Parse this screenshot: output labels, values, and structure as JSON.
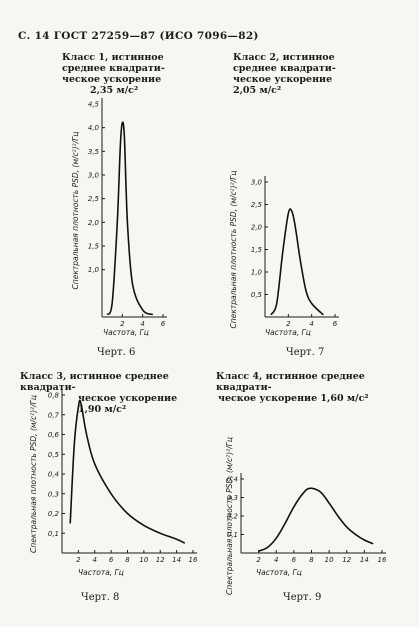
{
  "header": "С. 14 ГОСТ 27259—87 (ИСО 7096—82)",
  "ylabel": "Спектральная плотность PSD, (м/с²)²/Гц",
  "xlabel": "Частота, Гц",
  "blocks": [
    {
      "title_lines": [
        "Класс 1, истинное",
        "среднее квадрати-",
        "ческое ускорение",
        "2,35 м/с²"
      ],
      "caption": "Черт. 6",
      "chart_data": {
        "type": "line",
        "x": [
          0.5,
          1.0,
          1.5,
          1.8,
          2.0,
          2.2,
          2.5,
          3.0,
          4.0,
          5.0
        ],
        "y": [
          0.05,
          0.3,
          2.0,
          3.6,
          4.1,
          3.8,
          2.0,
          0.7,
          0.15,
          0.05
        ],
        "xlim": [
          0,
          6
        ],
        "ylim": [
          0,
          4.5
        ],
        "xticks": [
          "2",
          "4",
          "6"
        ],
        "yticks": [
          "1,0",
          "1,5",
          "2,0",
          "2,5",
          "3,0",
          "3,5",
          "4,0"
        ],
        "ytop": "4,5"
      }
    },
    {
      "title_lines": [
        "Класс 2, истинное",
        "среднее квадрати-",
        "ческое ускорение",
        "2,05 м/с²"
      ],
      "caption": "Черт. 7",
      "chart_data": {
        "type": "line",
        "x": [
          0.5,
          1.0,
          1.5,
          2.0,
          2.3,
          2.6,
          3.0,
          3.5,
          4.0,
          5.0
        ],
        "y": [
          0.05,
          0.3,
          1.4,
          2.3,
          2.35,
          2.0,
          1.3,
          0.6,
          0.3,
          0.05
        ],
        "xlim": [
          0,
          6
        ],
        "ylim": [
          0,
          3.0
        ],
        "xticks": [
          "2",
          "4",
          "6"
        ],
        "yticks": [
          "0,5",
          "1,0",
          "1,5",
          "2,0",
          "2,5",
          "3,0"
        ]
      }
    },
    {
      "title_lines": [
        "Класс 3, истинное среднее квадрати-",
        "ческое ускорение 1,90 м/с²"
      ],
      "caption": "Черт. 8",
      "chart_data": {
        "type": "line",
        "x": [
          1.0,
          1.5,
          2.0,
          2.3,
          3.0,
          4.0,
          6.0,
          8.0,
          10.0,
          12.0,
          14.0,
          15.0
        ],
        "y": [
          0.15,
          0.55,
          0.74,
          0.76,
          0.6,
          0.45,
          0.3,
          0.2,
          0.14,
          0.1,
          0.07,
          0.05
        ],
        "xlim": [
          0,
          16
        ],
        "ylim": [
          0,
          0.8
        ],
        "xticks": [
          "2",
          "4",
          "6",
          "8",
          "10",
          "12",
          "14",
          "16"
        ],
        "yticks": [
          "0,1",
          "0,2",
          "0,3",
          "0,4",
          "0,5",
          "0,6",
          "0,7",
          "0,8"
        ]
      }
    },
    {
      "title_lines": [
        "Класс 4, истинное среднее квадрати-",
        "ческое ускорение 1,60 м/с²"
      ],
      "caption": "Черт. 9",
      "chart_data": {
        "type": "line",
        "x": [
          2.0,
          3.0,
          4.0,
          5.0,
          6.0,
          7.0,
          7.8,
          9.0,
          10.0,
          11.0,
          12.0,
          13.0,
          14.0,
          15.0
        ],
        "y": [
          0.01,
          0.03,
          0.08,
          0.16,
          0.25,
          0.32,
          0.35,
          0.33,
          0.27,
          0.2,
          0.14,
          0.1,
          0.07,
          0.05
        ],
        "xlim": [
          0,
          16
        ],
        "ylim": [
          0,
          0.4
        ],
        "xticks": [
          "2",
          "4",
          "6",
          "8",
          "10",
          "12",
          "14",
          "16"
        ],
        "yticks": [
          "0,1",
          "0,2",
          "0,3",
          "0,4"
        ]
      }
    }
  ]
}
